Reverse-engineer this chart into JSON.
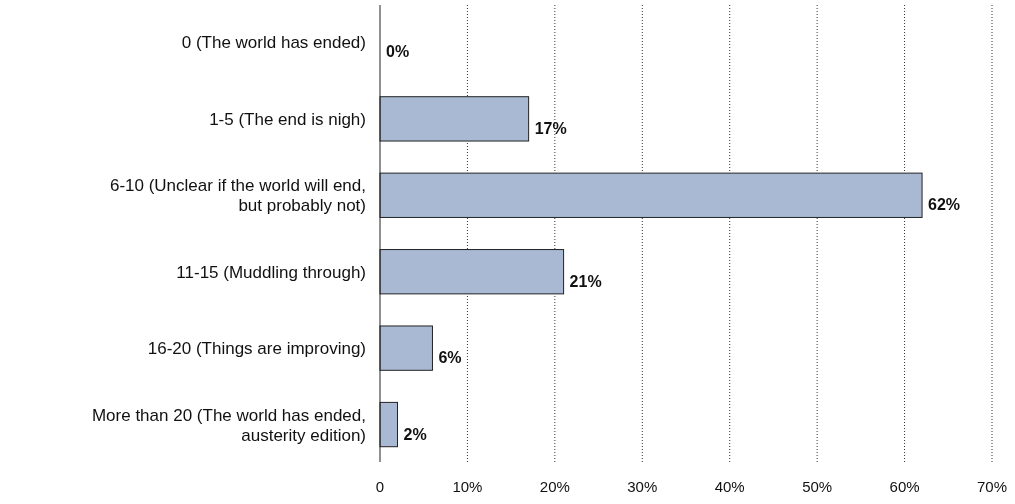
{
  "chart_data": {
    "type": "bar",
    "orientation": "horizontal",
    "categories": [
      "0 (The world has ended)",
      "1-5 (The end is nigh)",
      "6-10 (Unclear if the world will end, but probably not)",
      "11-15 (Muddling through)",
      "16-20 (Things are improving)",
      "More than 20 (The world has ended, austerity edition)"
    ],
    "values": [
      0,
      17,
      62,
      21,
      6,
      2
    ],
    "value_labels": [
      "0%",
      "17%",
      "62%",
      "21%",
      "6%",
      "2%"
    ],
    "color": "#a9b9d4",
    "xlim": [
      0,
      70
    ],
    "xticks": [
      0,
      {
        "value": 10,
        "label": "10%"
      },
      {
        "value": 20,
        "label": "20%"
      },
      {
        "value": 30,
        "label": "30%"
      },
      {
        "value": 40,
        "label": "40%"
      },
      {
        "value": 50,
        "label": "50%"
      },
      {
        "value": 60,
        "label": "60%"
      },
      {
        "value": 70,
        "label": "70%"
      }
    ],
    "grid": "x"
  }
}
